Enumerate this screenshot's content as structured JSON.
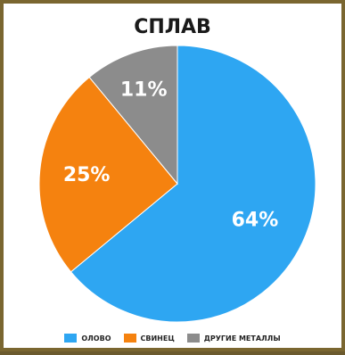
{
  "chart_data": {
    "type": "pie",
    "title": "СПЛАВ",
    "categories": [
      "ОЛОВО",
      "СВИНЕЦ",
      "ДРУГИЕ МЕТАЛЛЫ"
    ],
    "values": [
      64,
      25,
      11
    ],
    "labels": [
      "64%",
      "25%",
      "11%"
    ],
    "colors": [
      "#2ea6f2",
      "#f5820f",
      "#8c8c8c"
    ],
    "legend_position": "bottom"
  }
}
